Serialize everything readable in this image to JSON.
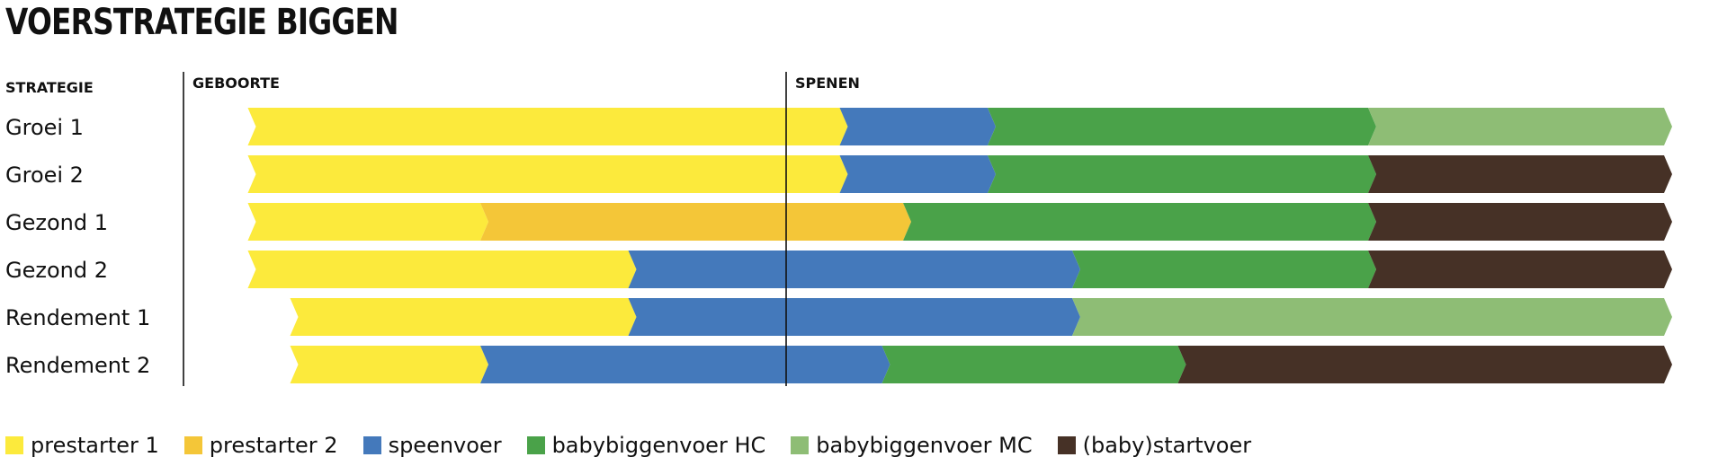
{
  "title": "VOERSTRATEGIE BIGGEN",
  "chart_data": {
    "type": "bar",
    "row_header": "STRATEGIE",
    "markers": [
      {
        "label": "GEBOORTE",
        "x": 0
      },
      {
        "label": "SPENEN",
        "x": 28
      }
    ],
    "xlim": [
      -3,
      70
    ],
    "categories": [
      "Groei 1",
      "Groei 2",
      "Gezond 1",
      "Gezond 2",
      "Rendement 1",
      "Rendement 2"
    ],
    "feeds": [
      {
        "name": "prestarter 1",
        "color": "#FCEA3C"
      },
      {
        "name": "prestarter 2",
        "color": "#F4C638"
      },
      {
        "name": "speenvoer",
        "color": "#4479BB"
      },
      {
        "name": "babybiggenvoer HC",
        "color": "#4AA249"
      },
      {
        "name": "babybiggenvoer MC",
        "color": "#8EBD75"
      },
      {
        "name": "(baby)startvoer",
        "color": "#463126"
      }
    ],
    "rows": [
      {
        "label": "Groei 1",
        "start": 3,
        "segments": [
          {
            "feed": "prestarter 1",
            "end": 31
          },
          {
            "feed": "speenvoer",
            "end": 38
          },
          {
            "feed": "babybiggenvoer HC",
            "end": 56
          },
          {
            "feed": "babybiggenvoer MC",
            "end": 70
          }
        ]
      },
      {
        "label": "Groei 2",
        "start": 3,
        "segments": [
          {
            "feed": "prestarter 1",
            "end": 31
          },
          {
            "feed": "speenvoer",
            "end": 38
          },
          {
            "feed": "babybiggenvoer HC",
            "end": 56
          },
          {
            "feed": "(baby)startvoer",
            "end": 70
          }
        ]
      },
      {
        "label": "Gezond 1",
        "start": 3,
        "segments": [
          {
            "feed": "prestarter 1",
            "end": 14
          },
          {
            "feed": "prestarter 2",
            "end": 34
          },
          {
            "feed": "babybiggenvoer HC",
            "end": 56
          },
          {
            "feed": "(baby)startvoer",
            "end": 70
          }
        ]
      },
      {
        "label": "Gezond 2",
        "start": 3,
        "segments": [
          {
            "feed": "prestarter 1",
            "end": 21
          },
          {
            "feed": "speenvoer",
            "end": 42
          },
          {
            "feed": "babybiggenvoer HC",
            "end": 56
          },
          {
            "feed": "(baby)startvoer",
            "end": 70
          }
        ]
      },
      {
        "label": "Rendement 1",
        "start": 5,
        "segments": [
          {
            "feed": "prestarter 1",
            "end": 21
          },
          {
            "feed": "speenvoer",
            "end": 42
          },
          {
            "feed": "babybiggenvoer MC",
            "end": 70
          }
        ]
      },
      {
        "label": "Rendement 2",
        "start": 5,
        "segments": [
          {
            "feed": "prestarter 1",
            "end": 14
          },
          {
            "feed": "speenvoer",
            "end": 33
          },
          {
            "feed": "babybiggenvoer HC",
            "end": 47
          },
          {
            "feed": "(baby)startvoer",
            "end": 70
          }
        ]
      }
    ]
  }
}
